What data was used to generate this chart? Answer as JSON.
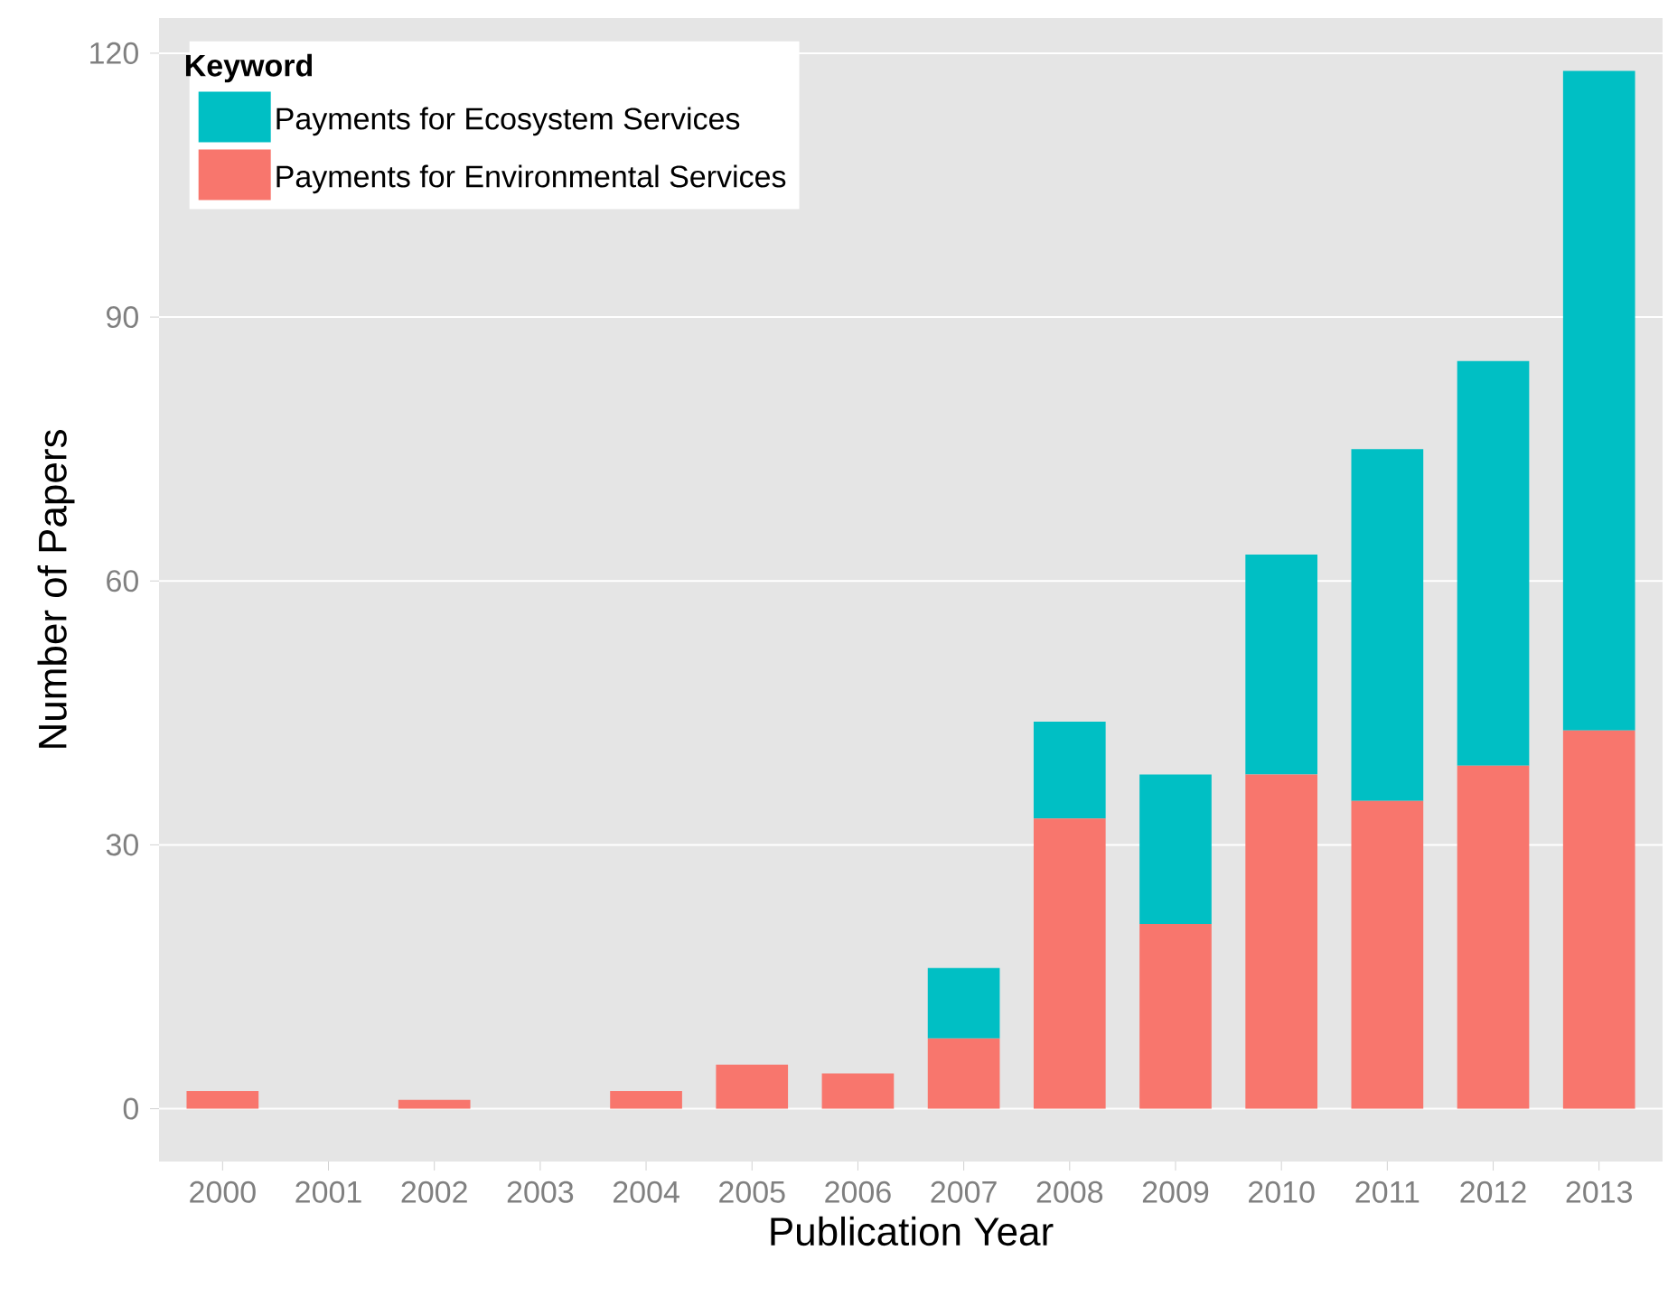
{
  "chart_data": {
    "type": "bar",
    "stacked": true,
    "xlabel": "Publication Year",
    "ylabel": "Number of Papers",
    "legend_title": "Keyword",
    "legend": "top left",
    "grid": "y",
    "categories": [
      "2000",
      "2001",
      "2002",
      "2003",
      "2004",
      "2005",
      "2006",
      "2007",
      "2008",
      "2009",
      "2010",
      "2011",
      "2012",
      "2013"
    ],
    "ylim": [
      -6,
      124
    ],
    "yticks": [
      0,
      30,
      60,
      90,
      120
    ],
    "series": [
      {
        "name": "Payments for Environmental Services",
        "color": "#f8766d",
        "values": [
          2,
          0,
          1,
          0,
          2,
          5,
          4,
          8,
          33,
          21,
          38,
          35,
          39,
          43
        ]
      },
      {
        "name": "Payments for Ecosystem Services",
        "color": "#00bfc4",
        "values": [
          0,
          0,
          0,
          0,
          0,
          0,
          0,
          8,
          11,
          17,
          25,
          40,
          46,
          75
        ]
      }
    ]
  }
}
